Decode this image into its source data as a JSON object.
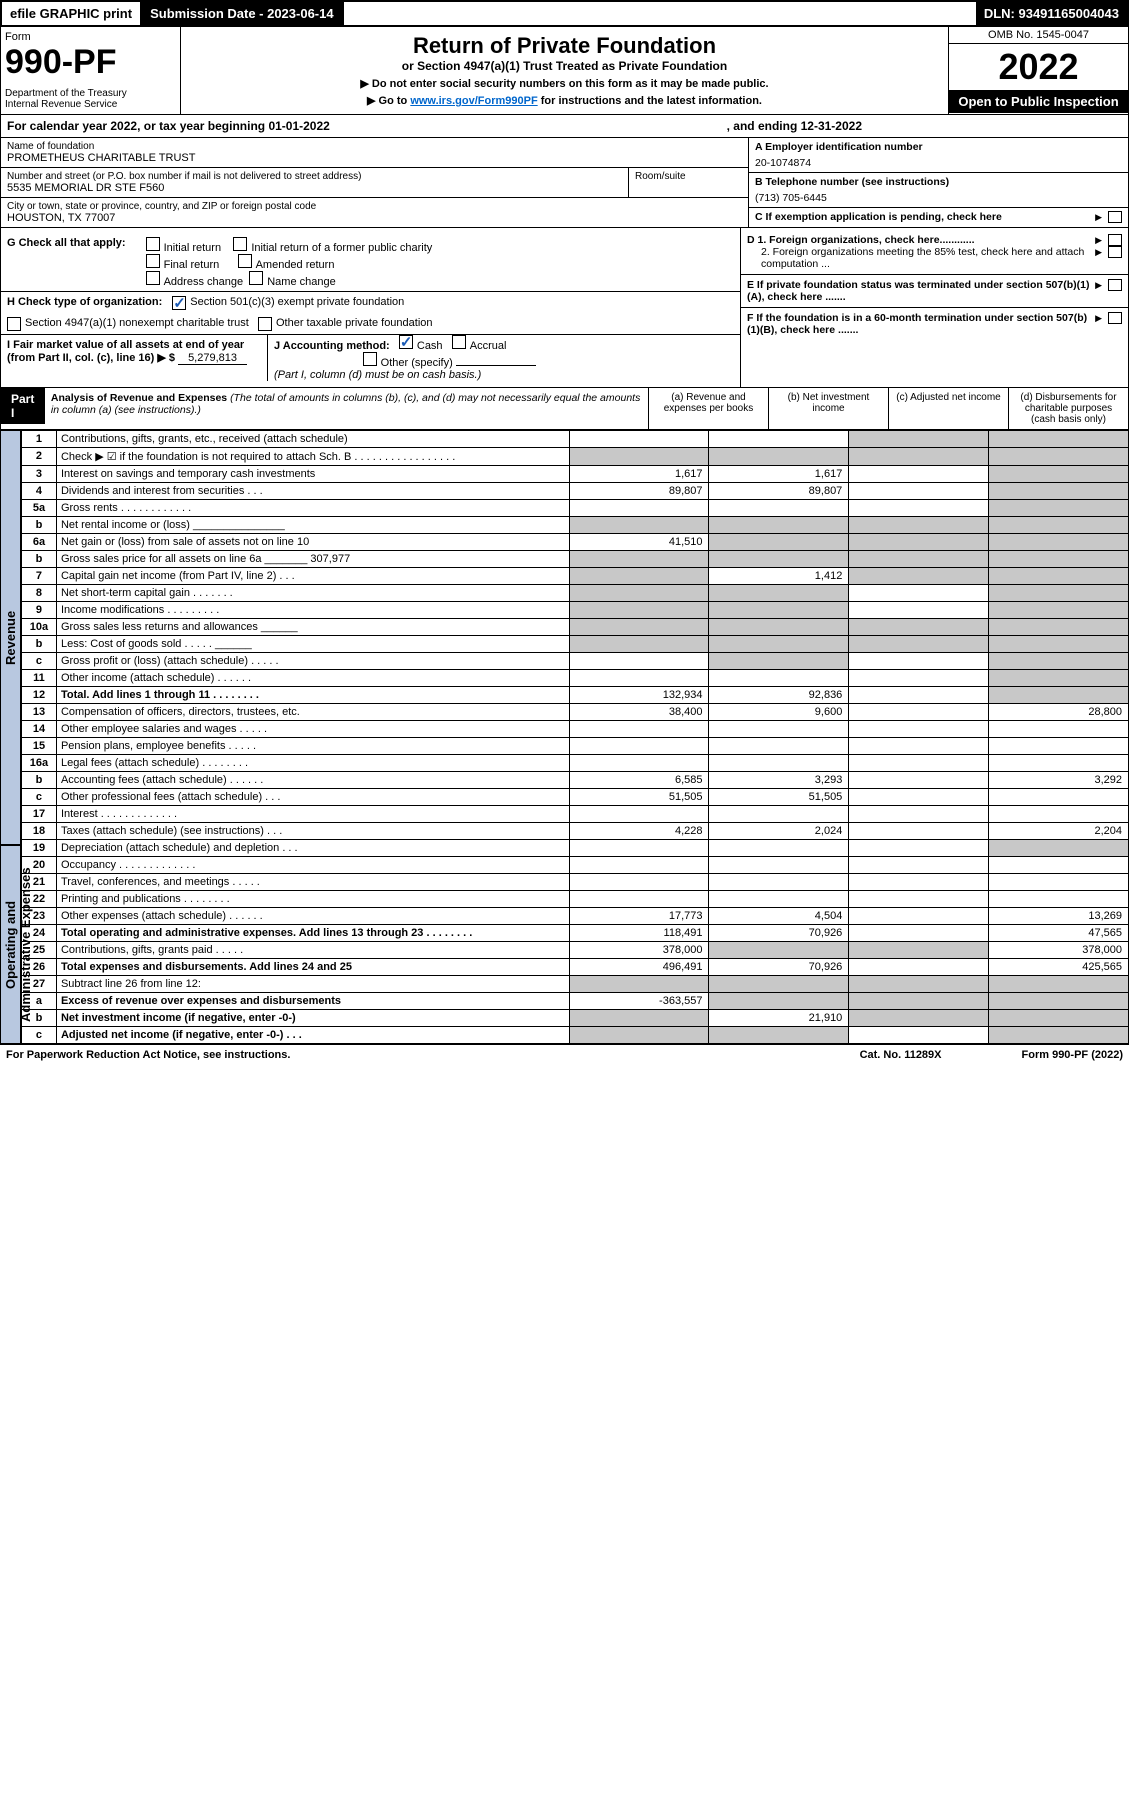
{
  "topbar": {
    "efile": "efile GRAPHIC print",
    "subdate_label": "Submission Date - 2023-06-14",
    "dln": "DLN: 93491165004043"
  },
  "header": {
    "form_label": "Form",
    "form_no": "990-PF",
    "dept": "Department of the Treasury\nInternal Revenue Service",
    "title": "Return of Private Foundation",
    "sub": "or Section 4947(a)(1) Trust Treated as Private Foundation",
    "note1": "▶ Do not enter social security numbers on this form as it may be made public.",
    "note2_pre": "▶ Go to ",
    "note2_link": "www.irs.gov/Form990PF",
    "note2_post": " for instructions and the latest information.",
    "omb": "OMB No. 1545-0047",
    "year": "2022",
    "open": "Open to Public Inspection"
  },
  "calendar": {
    "text": "For calendar year 2022, or tax year beginning 01-01-2022",
    "ending": ", and ending 12-31-2022"
  },
  "info": {
    "name_label": "Name of foundation",
    "name": "PROMETHEUS CHARITABLE TRUST",
    "addr_label": "Number and street (or P.O. box number if mail is not delivered to street address)",
    "addr": "5535 MEMORIAL DR STE F560",
    "room_label": "Room/suite",
    "city_label": "City or town, state or province, country, and ZIP or foreign postal code",
    "city": "HOUSTON, TX  77007",
    "ein_label": "A Employer identification number",
    "ein": "20-1074874",
    "phone_label": "B Telephone number (see instructions)",
    "phone": "(713) 705-6445",
    "c_label": "C If exemption application is pending, check here"
  },
  "checks": {
    "g_label": "G Check all that apply:",
    "g_opts": [
      "Initial return",
      "Initial return of a former public charity",
      "Final return",
      "Amended return",
      "Address change",
      "Name change"
    ],
    "h_label": "H Check type of organization:",
    "h1": "Section 501(c)(3) exempt private foundation",
    "h2": "Section 4947(a)(1) nonexempt charitable trust",
    "h3": "Other taxable private foundation",
    "i_label": "I Fair market value of all assets at end of year (from Part II, col. (c), line 16) ▶ $",
    "i_val": "5,279,813",
    "j_label": "J Accounting method:",
    "j_cash": "Cash",
    "j_accrual": "Accrual",
    "j_other": "Other (specify)",
    "j_note": "(Part I, column (d) must be on cash basis.)",
    "d1": "D 1. Foreign organizations, check here............",
    "d2": "2. Foreign organizations meeting the 85% test, check here and attach computation ...",
    "e": "E If private foundation status was terminated under section 507(b)(1)(A), check here .......",
    "f": "F If the foundation is in a 60-month termination under section 507(b)(1)(B), check here ......."
  },
  "part1": {
    "label": "Part I",
    "title": "Analysis of Revenue and Expenses",
    "note": "(The total of amounts in columns (b), (c), and (d) may not necessarily equal the amounts in column (a) (see instructions).)",
    "col_a": "(a) Revenue and expenses per books",
    "col_b": "(b) Net investment income",
    "col_c": "(c) Adjusted net income",
    "col_d": "(d) Disbursements for charitable purposes (cash basis only)"
  },
  "side": {
    "rev": "Revenue",
    "exp": "Operating and Administrative Expenses"
  },
  "rows": [
    {
      "n": "1",
      "l": "Contributions, gifts, grants, etc., received (attach schedule)",
      "a": "",
      "b": "",
      "c": "",
      "d": "",
      "shade_c": true,
      "shade_d": true
    },
    {
      "n": "2",
      "l": "Check ▶ ☑ if the foundation is not required to attach Sch. B   . . . . . . . . . . . . . . . . .",
      "a": "",
      "b": "",
      "c": "",
      "d": "",
      "shade_a": true,
      "shade_b": true,
      "shade_c": true,
      "shade_d": true
    },
    {
      "n": "3",
      "l": "Interest on savings and temporary cash investments",
      "a": "1,617",
      "b": "1,617",
      "c": "",
      "d": "",
      "shade_d": true
    },
    {
      "n": "4",
      "l": "Dividends and interest from securities   . . .",
      "a": "89,807",
      "b": "89,807",
      "c": "",
      "d": "",
      "shade_d": true
    },
    {
      "n": "5a",
      "l": "Gross rents   . . . . . . . . . . . .",
      "a": "",
      "b": "",
      "c": "",
      "d": "",
      "shade_d": true
    },
    {
      "n": "b",
      "l": "Net rental income or (loss) _______________",
      "a": "",
      "b": "",
      "c": "",
      "d": "",
      "shade_a": true,
      "shade_b": true,
      "shade_c": true,
      "shade_d": true
    },
    {
      "n": "6a",
      "l": "Net gain or (loss) from sale of assets not on line 10",
      "a": "41,510",
      "b": "",
      "c": "",
      "d": "",
      "shade_b": true,
      "shade_c": true,
      "shade_d": true
    },
    {
      "n": "b",
      "l": "Gross sales price for all assets on line 6a _______ 307,977",
      "a": "",
      "b": "",
      "c": "",
      "d": "",
      "shade_a": true,
      "shade_b": true,
      "shade_c": true,
      "shade_d": true
    },
    {
      "n": "7",
      "l": "Capital gain net income (from Part IV, line 2)   . . .",
      "a": "",
      "b": "1,412",
      "c": "",
      "d": "",
      "shade_a": true,
      "shade_c": true,
      "shade_d": true
    },
    {
      "n": "8",
      "l": "Net short-term capital gain   . . . . . . .",
      "a": "",
      "b": "",
      "c": "",
      "d": "",
      "shade_a": true,
      "shade_b": true,
      "shade_d": true
    },
    {
      "n": "9",
      "l": "Income modifications   . . . . . . . . .",
      "a": "",
      "b": "",
      "c": "",
      "d": "",
      "shade_a": true,
      "shade_b": true,
      "shade_d": true
    },
    {
      "n": "10a",
      "l": "Gross sales less returns and allowances ______",
      "a": "",
      "b": "",
      "c": "",
      "d": "",
      "shade_a": true,
      "shade_b": true,
      "shade_c": true,
      "shade_d": true
    },
    {
      "n": "b",
      "l": "Less: Cost of goods sold   . . . . . ______",
      "a": "",
      "b": "",
      "c": "",
      "d": "",
      "shade_a": true,
      "shade_b": true,
      "shade_c": true,
      "shade_d": true
    },
    {
      "n": "c",
      "l": "Gross profit or (loss) (attach schedule)   . . . . .",
      "a": "",
      "b": "",
      "c": "",
      "d": "",
      "shade_b": true,
      "shade_d": true
    },
    {
      "n": "11",
      "l": "Other income (attach schedule)   . . . . . .",
      "a": "",
      "b": "",
      "c": "",
      "d": "",
      "shade_d": true
    },
    {
      "n": "12",
      "l": "Total. Add lines 1 through 11   . . . . . . . .",
      "a": "132,934",
      "b": "92,836",
      "c": "",
      "d": "",
      "bold": true,
      "shade_d": true
    },
    {
      "n": "13",
      "l": "Compensation of officers, directors, trustees, etc.",
      "a": "38,400",
      "b": "9,600",
      "c": "",
      "d": "28,800"
    },
    {
      "n": "14",
      "l": "Other employee salaries and wages   . . . . .",
      "a": "",
      "b": "",
      "c": "",
      "d": ""
    },
    {
      "n": "15",
      "l": "Pension plans, employee benefits   . . . . .",
      "a": "",
      "b": "",
      "c": "",
      "d": ""
    },
    {
      "n": "16a",
      "l": "Legal fees (attach schedule)   . . . . . . . .",
      "a": "",
      "b": "",
      "c": "",
      "d": ""
    },
    {
      "n": "b",
      "l": "Accounting fees (attach schedule)   . . . . . .",
      "a": "6,585",
      "b": "3,293",
      "c": "",
      "d": "3,292"
    },
    {
      "n": "c",
      "l": "Other professional fees (attach schedule)   . . .",
      "a": "51,505",
      "b": "51,505",
      "c": "",
      "d": ""
    },
    {
      "n": "17",
      "l": "Interest   . . . . . . . . . . . . .",
      "a": "",
      "b": "",
      "c": "",
      "d": ""
    },
    {
      "n": "18",
      "l": "Taxes (attach schedule) (see instructions)   . . .",
      "a": "4,228",
      "b": "2,024",
      "c": "",
      "d": "2,204"
    },
    {
      "n": "19",
      "l": "Depreciation (attach schedule) and depletion   . . .",
      "a": "",
      "b": "",
      "c": "",
      "d": "",
      "shade_d": true
    },
    {
      "n": "20",
      "l": "Occupancy   . . . . . . . . . . . . .",
      "a": "",
      "b": "",
      "c": "",
      "d": ""
    },
    {
      "n": "21",
      "l": "Travel, conferences, and meetings   . . . . .",
      "a": "",
      "b": "",
      "c": "",
      "d": ""
    },
    {
      "n": "22",
      "l": "Printing and publications   . . . . . . . .",
      "a": "",
      "b": "",
      "c": "",
      "d": ""
    },
    {
      "n": "23",
      "l": "Other expenses (attach schedule)   . . . . . .",
      "a": "17,773",
      "b": "4,504",
      "c": "",
      "d": "13,269"
    },
    {
      "n": "24",
      "l": "Total operating and administrative expenses. Add lines 13 through 23   . . . . . . . .",
      "a": "118,491",
      "b": "70,926",
      "c": "",
      "d": "47,565",
      "bold": true
    },
    {
      "n": "25",
      "l": "Contributions, gifts, grants paid   . . . . .",
      "a": "378,000",
      "b": "",
      "c": "",
      "d": "378,000",
      "shade_b": true,
      "shade_c": true
    },
    {
      "n": "26",
      "l": "Total expenses and disbursements. Add lines 24 and 25",
      "a": "496,491",
      "b": "70,926",
      "c": "",
      "d": "425,565",
      "bold": true
    },
    {
      "n": "27",
      "l": "Subtract line 26 from line 12:",
      "a": "",
      "b": "",
      "c": "",
      "d": "",
      "shade_a": true,
      "shade_b": true,
      "shade_c": true,
      "shade_d": true
    },
    {
      "n": "a",
      "l": "Excess of revenue over expenses and disbursements",
      "a": "-363,557",
      "b": "",
      "c": "",
      "d": "",
      "bold": true,
      "shade_b": true,
      "shade_c": true,
      "shade_d": true
    },
    {
      "n": "b",
      "l": "Net investment income (if negative, enter -0-)",
      "a": "",
      "b": "21,910",
      "c": "",
      "d": "",
      "bold": true,
      "shade_a": true,
      "shade_c": true,
      "shade_d": true
    },
    {
      "n": "c",
      "l": "Adjusted net income (if negative, enter -0-)   . . .",
      "a": "",
      "b": "",
      "c": "",
      "d": "",
      "bold": true,
      "shade_a": true,
      "shade_b": true,
      "shade_d": true
    }
  ],
  "footer": {
    "left": "For Paperwork Reduction Act Notice, see instructions.",
    "mid": "Cat. No. 11289X",
    "right": "Form 990-PF (2022)"
  },
  "colors": {
    "shade": "#c8c8c8",
    "side": "#b8c8e0",
    "link": "#0066cc",
    "check": "#2a7a2a"
  }
}
